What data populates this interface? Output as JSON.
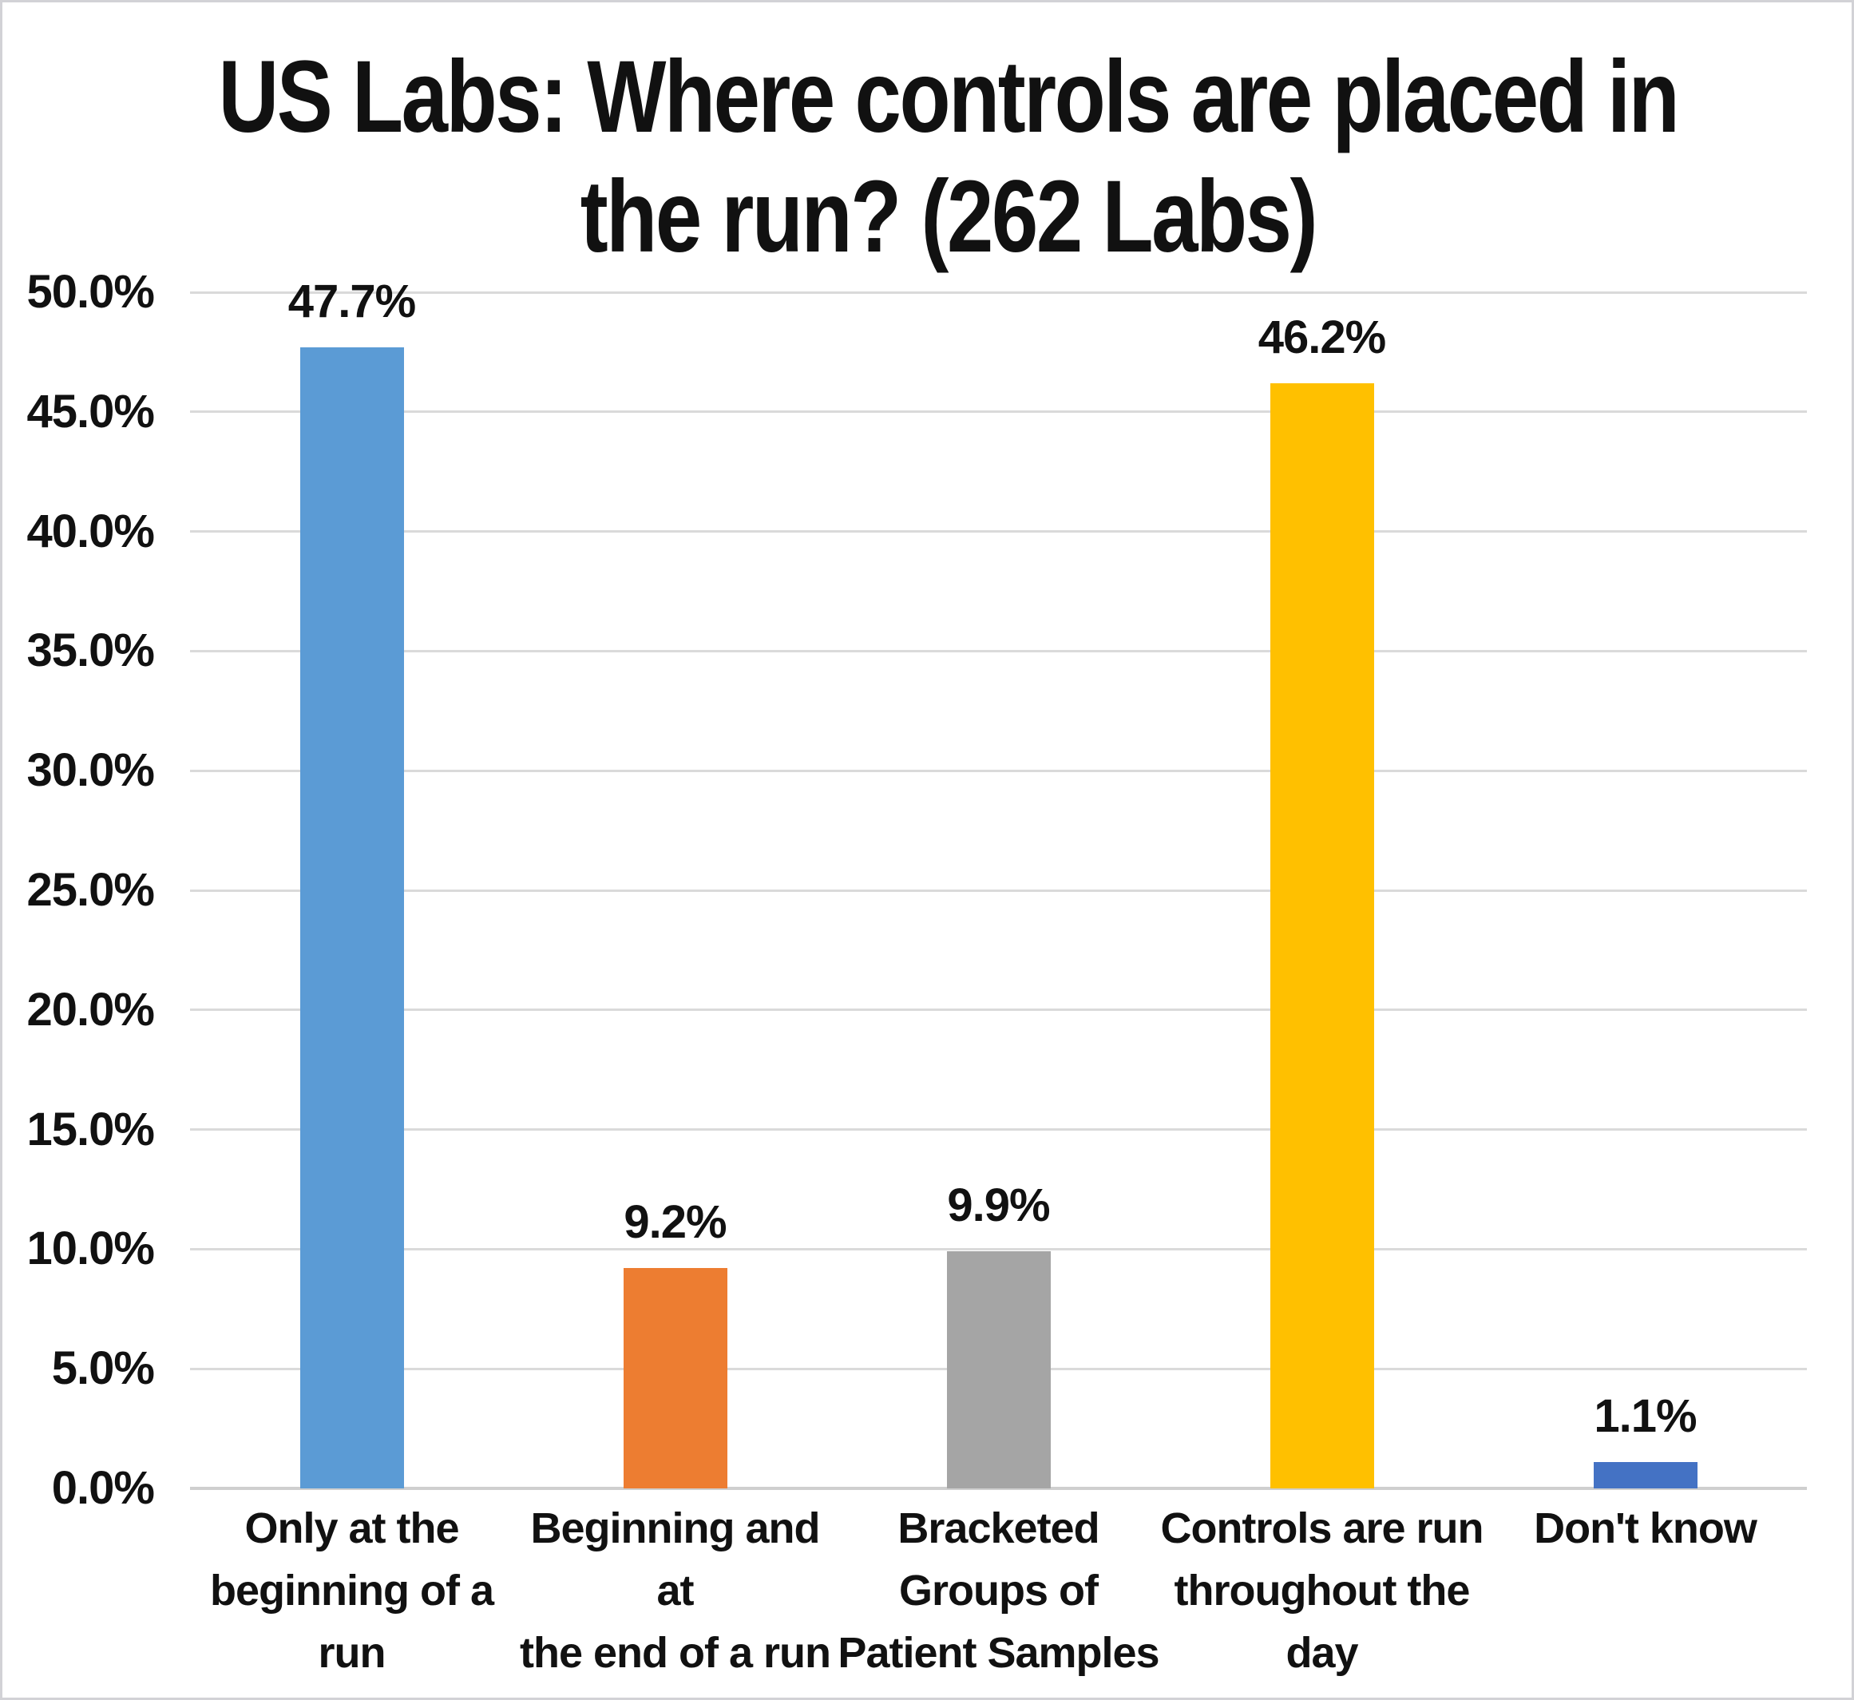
{
  "chart_data": {
    "type": "bar",
    "title": "US Labs: Where controls are placed in the run? (262 Labs)",
    "title_display": "US Labs: Where controls are placed in\nthe run? (262 Labs)",
    "categories": [
      "Only at the beginning of a run",
      "Beginning and at the end of a run",
      "Bracketed Groups of Patient Samples",
      "Controls are run throughout the day",
      "Don't know"
    ],
    "categories_display": [
      "Only at the\nbeginning of a\nrun",
      "Beginning and at\nthe end of a run",
      "Bracketed\nGroups of\nPatient Samples",
      "Controls are run\nthroughout the\nday",
      "Don't know"
    ],
    "values": [
      47.7,
      9.2,
      9.9,
      46.2,
      1.1
    ],
    "value_labels": [
      "47.7%",
      "9.2%",
      "9.9%",
      "46.2%",
      "1.1%"
    ],
    "bar_colors": [
      "#5B9BD5",
      "#ED7D31",
      "#A5A5A5",
      "#FFC000",
      "#4472C4"
    ],
    "ytick_labels": [
      "0.0%",
      "5.0%",
      "10.0%",
      "15.0%",
      "20.0%",
      "25.0%",
      "30.0%",
      "35.0%",
      "40.0%",
      "45.0%",
      "50.0%"
    ],
    "ylim": [
      0,
      50
    ],
    "xlabel": "",
    "ylabel": "",
    "grid": true,
    "legend": false,
    "gridline_color": "#DADADA",
    "axis_line_color": "#CFCFCF",
    "text_color": "#111111",
    "background_color": "#FFFFFF",
    "border_color": "#D2D2D6"
  }
}
